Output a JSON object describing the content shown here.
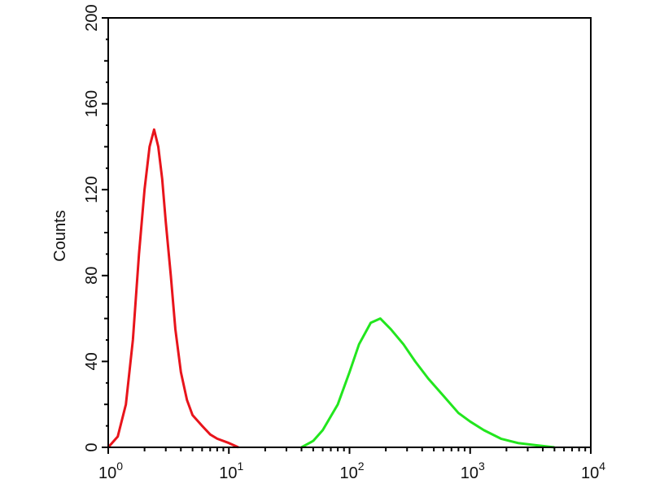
{
  "chart_data": {
    "type": "line",
    "title": "",
    "xlabel": "",
    "ylabel": "Counts",
    "xscale": "log",
    "xlim": [
      1,
      10000
    ],
    "ylim": [
      0,
      200
    ],
    "yticks": [
      0,
      40,
      80,
      120,
      160,
      200
    ],
    "xticks": [
      {
        "base": "10",
        "exp": "0"
      },
      {
        "base": "10",
        "exp": "1"
      },
      {
        "base": "10",
        "exp": "2"
      },
      {
        "base": "10",
        "exp": "3"
      },
      {
        "base": "10",
        "exp": "4"
      }
    ],
    "grid": false,
    "series": [
      {
        "color": "#e8141b",
        "x": [
          1.0,
          1.2,
          1.4,
          1.6,
          1.8,
          2.0,
          2.2,
          2.4,
          2.6,
          2.8,
          3.0,
          3.3,
          3.6,
          4.0,
          4.5,
          5.0,
          6,
          7,
          8,
          10,
          12
        ],
        "y": [
          0,
          5,
          20,
          50,
          90,
          120,
          140,
          148,
          140,
          125,
          105,
          80,
          55,
          35,
          22,
          15,
          10,
          6,
          4,
          2,
          0
        ]
      },
      {
        "color": "#22e61e",
        "x": [
          40,
          50,
          60,
          80,
          100,
          120,
          150,
          180,
          220,
          280,
          350,
          450,
          600,
          800,
          1000,
          1300,
          1800,
          2500,
          3500,
          5000
        ],
        "y": [
          0,
          3,
          8,
          20,
          35,
          48,
          58,
          60,
          55,
          48,
          40,
          32,
          24,
          16,
          12,
          8,
          4,
          2,
          1,
          0
        ]
      }
    ]
  }
}
